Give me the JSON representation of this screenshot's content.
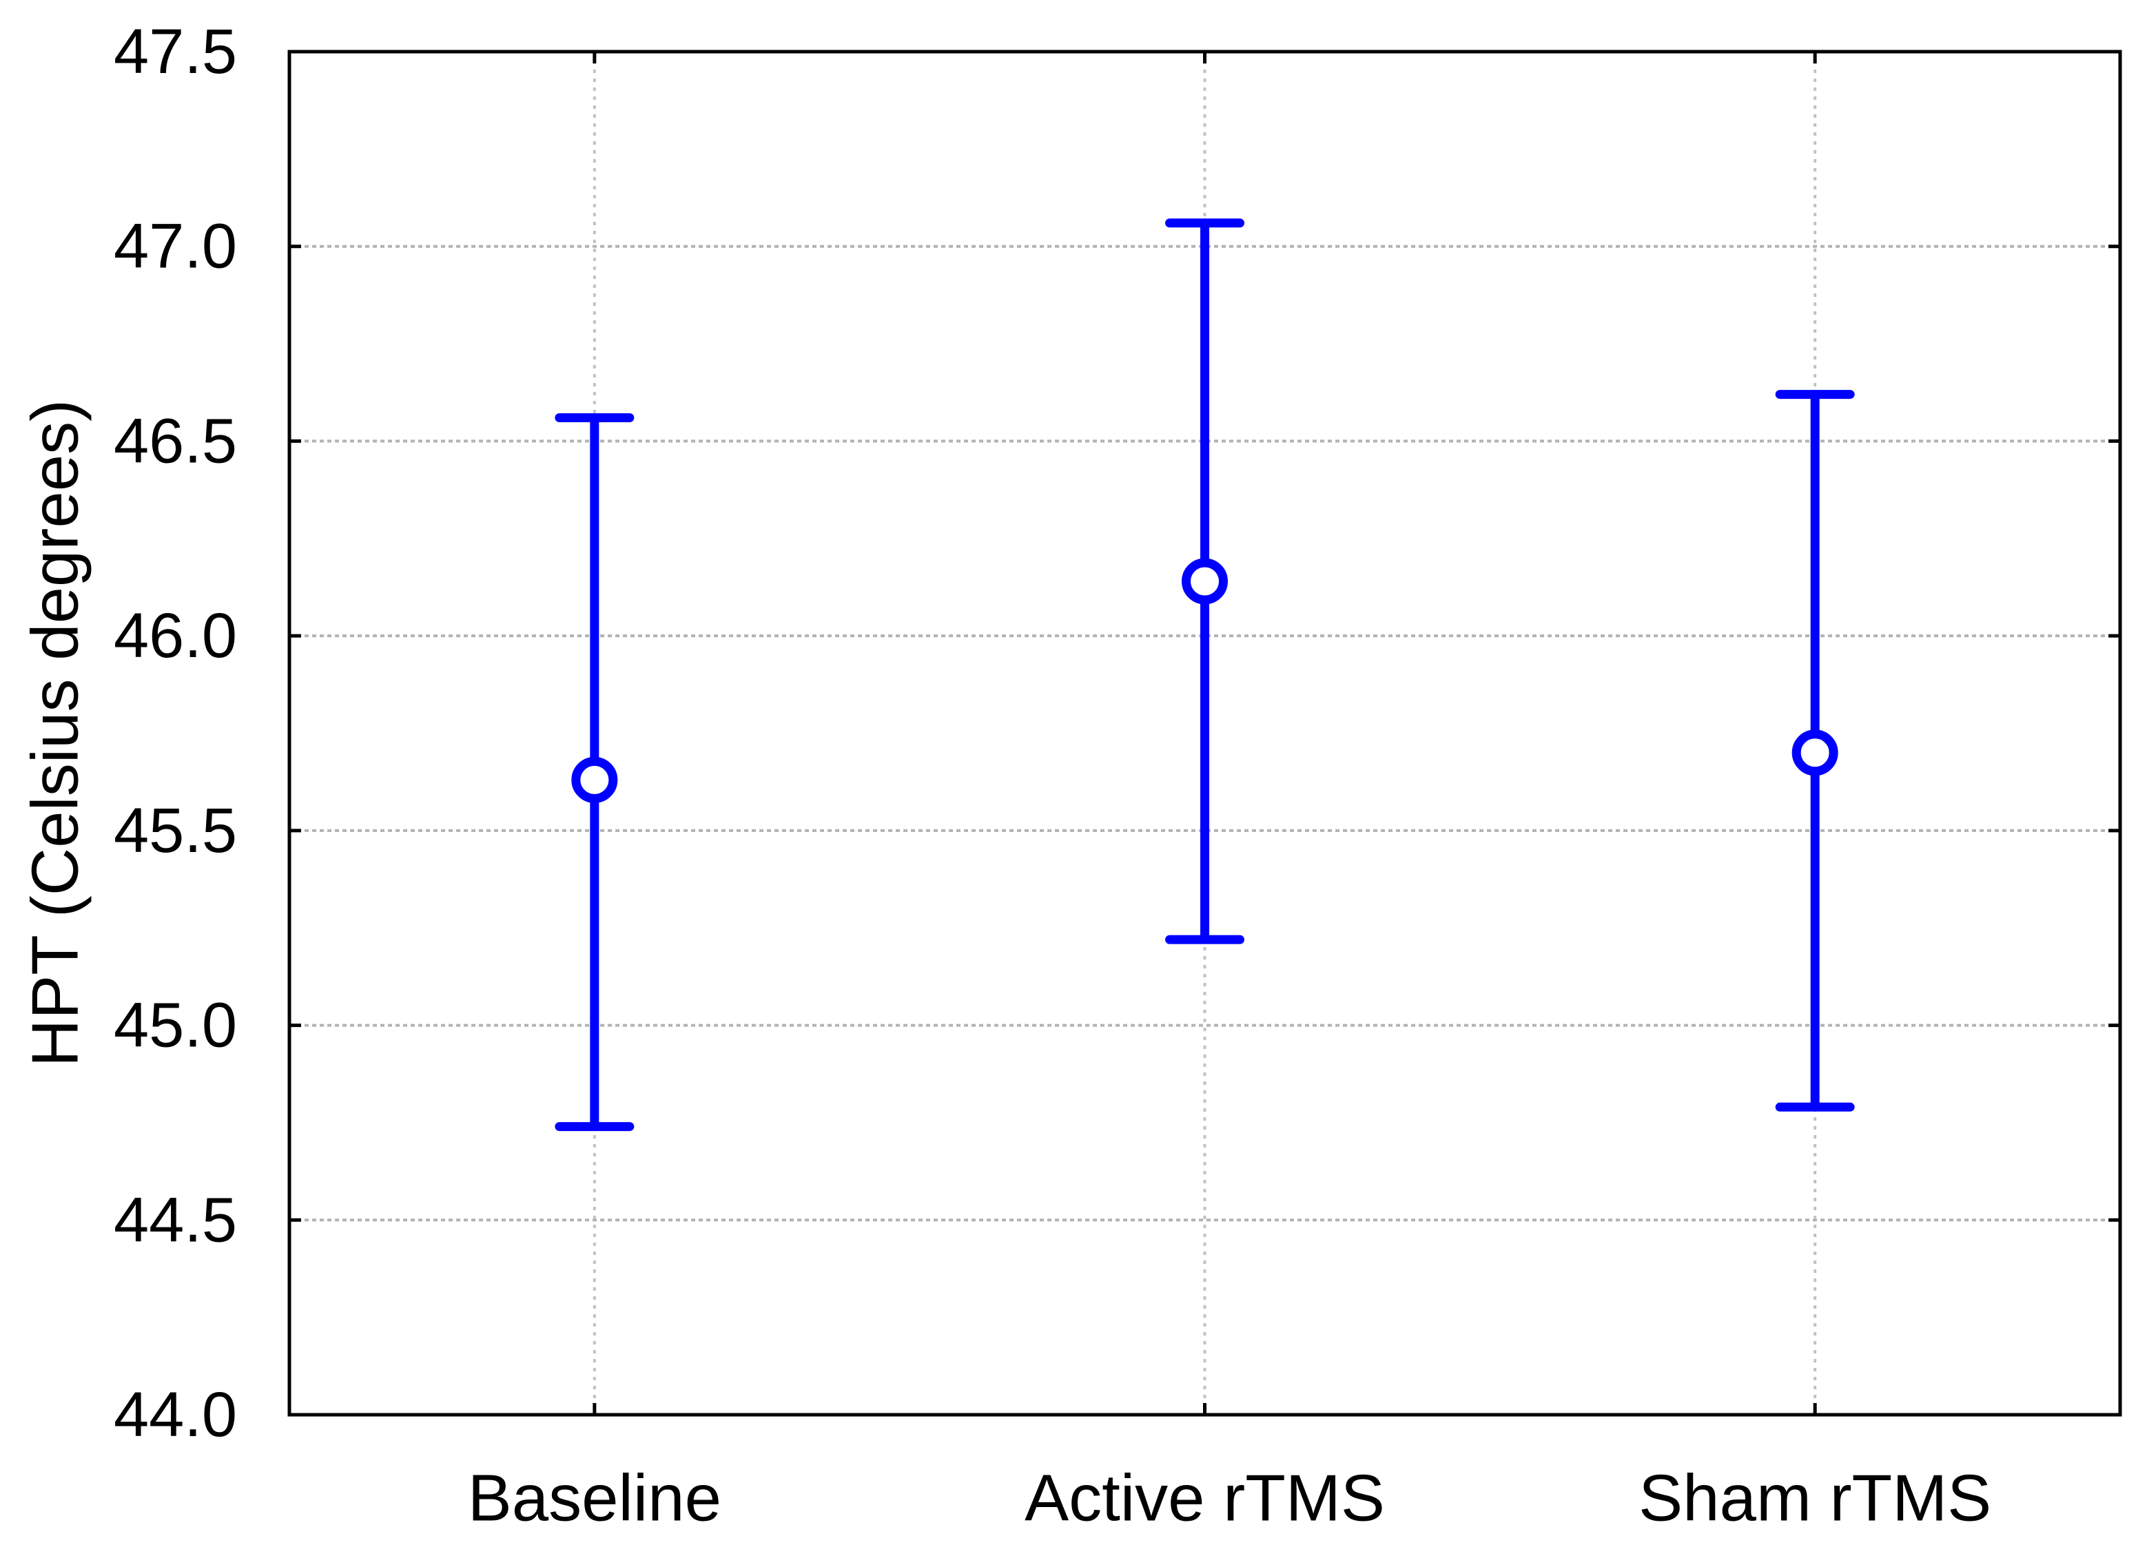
{
  "chart_data": {
    "type": "errorbar",
    "ylabel": "HPT (Celsius degrees)",
    "xlabel": "",
    "categories": [
      "Baseline",
      "Active rTMS",
      "Sham rTMS"
    ],
    "series": [
      {
        "name": "HPT mean with error bars",
        "means": [
          45.63,
          46.14,
          45.7
        ],
        "upper": [
          46.56,
          47.06,
          46.62
        ],
        "lower": [
          44.74,
          45.22,
          44.79
        ]
      }
    ],
    "ylim": [
      44.0,
      47.5
    ],
    "ytick_step": 0.5,
    "ytick_labels": [
      "44.0",
      "44.5",
      "45.0",
      "45.5",
      "46.0",
      "46.5",
      "47.0",
      "47.5"
    ],
    "grid": {
      "horizontal": "dashed",
      "vertical": "dotted"
    },
    "legend_position": "none",
    "marker": "open-circle",
    "colors": {
      "series": "#0000ff",
      "marker_fill": "#ffffff",
      "axis": "#000000",
      "grid_horizontal": "#b2b2b2",
      "grid_vertical": "#c2c2c2",
      "background": "#ffffff"
    }
  }
}
